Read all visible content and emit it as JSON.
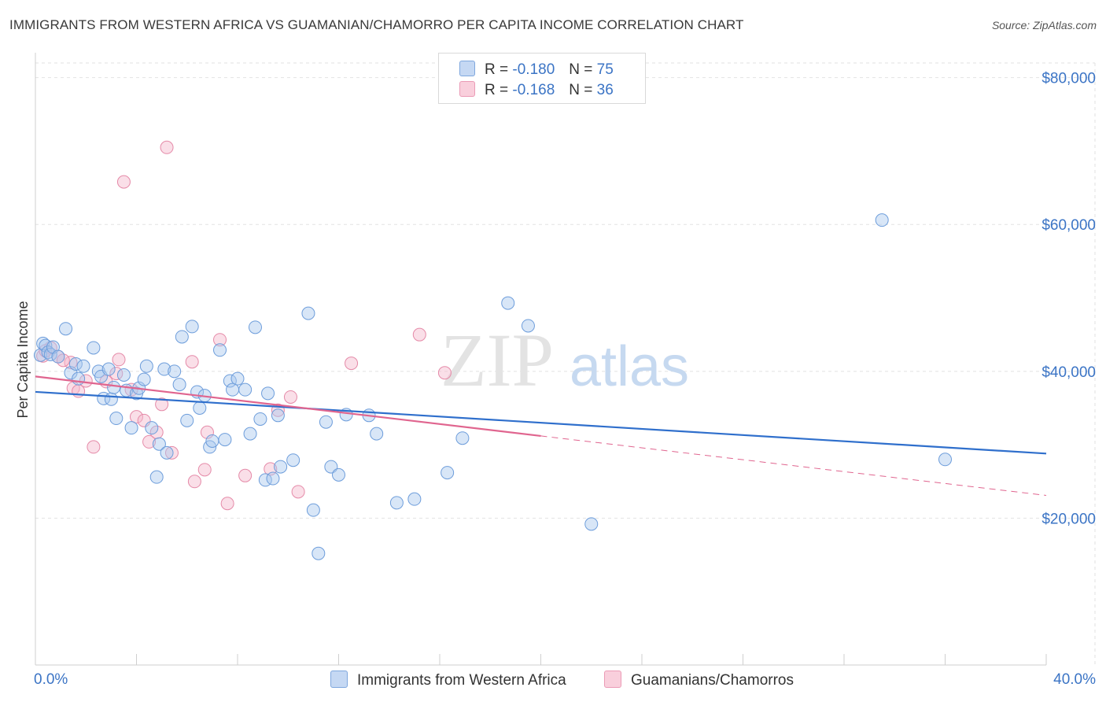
{
  "title": "IMMIGRANTS FROM WESTERN AFRICA VS GUAMANIAN/CHAMORRO PER CAPITA INCOME CORRELATION CHART",
  "source": "Source: ZipAtlas.com",
  "watermark": {
    "zip": "ZIP",
    "atlas": "atlas"
  },
  "legend": {
    "r_label": "R =",
    "n_label": "N =",
    "series1": {
      "r": "-0.180",
      "n": "75"
    },
    "series2": {
      "r": "-0.168",
      "n": "36"
    }
  },
  "colors": {
    "blue_fill": "#a9c7ee",
    "blue_stroke": "#6d9ddb",
    "blue_line": "#2f6fcc",
    "pink_fill": "#f5b9cc",
    "pink_stroke": "#e58aa8",
    "pink_line": "#e0658f",
    "axis_text": "#3b74c5"
  },
  "chart_data": {
    "type": "scatter",
    "title": "IMMIGRANTS FROM WESTERN AFRICA VS GUAMANIAN/CHAMORRO PER CAPITA INCOME CORRELATION CHART",
    "xlabel": "",
    "ylabel": "Per Capita Income",
    "xlim": [
      0,
      40
    ],
    "ylim": [
      0,
      82000
    ],
    "x_tick_labels": [
      "0.0%",
      "40.0%"
    ],
    "y_ticks": [
      20000,
      40000,
      60000,
      80000
    ],
    "y_tick_labels": [
      "$20,000",
      "$40,000",
      "$60,000",
      "$80,000"
    ],
    "grid": true,
    "legend_position": "bottom",
    "series": [
      {
        "name": "Immigrants from Western Africa",
        "color": "#6d9ddb",
        "trend": {
          "x": [
            0,
            40
          ],
          "y": [
            37200,
            28800
          ],
          "dashed_from": null
        },
        "points": [
          [
            0.2,
            42200
          ],
          [
            0.3,
            43800
          ],
          [
            0.4,
            43500
          ],
          [
            0.5,
            42600
          ],
          [
            0.6,
            42300
          ],
          [
            0.7,
            43300
          ],
          [
            0.9,
            42000
          ],
          [
            1.2,
            45800
          ],
          [
            1.4,
            39800
          ],
          [
            1.6,
            41000
          ],
          [
            1.7,
            39000
          ],
          [
            1.9,
            40700
          ],
          [
            2.3,
            43200
          ],
          [
            2.5,
            40000
          ],
          [
            2.6,
            39300
          ],
          [
            2.7,
            36300
          ],
          [
            2.9,
            40300
          ],
          [
            3.0,
            36200
          ],
          [
            3.1,
            37800
          ],
          [
            3.2,
            33600
          ],
          [
            3.5,
            39500
          ],
          [
            3.6,
            37400
          ],
          [
            3.8,
            32300
          ],
          [
            4.0,
            37000
          ],
          [
            4.1,
            37700
          ],
          [
            4.3,
            38900
          ],
          [
            4.4,
            40700
          ],
          [
            4.6,
            32300
          ],
          [
            4.8,
            25600
          ],
          [
            4.9,
            30100
          ],
          [
            5.1,
            40300
          ],
          [
            5.2,
            28900
          ],
          [
            5.5,
            40000
          ],
          [
            5.7,
            38200
          ],
          [
            5.8,
            44700
          ],
          [
            6.0,
            33300
          ],
          [
            6.2,
            46100
          ],
          [
            6.4,
            37200
          ],
          [
            6.5,
            35000
          ],
          [
            6.7,
            36700
          ],
          [
            6.9,
            29700
          ],
          [
            7.0,
            30500
          ],
          [
            7.3,
            42900
          ],
          [
            7.5,
            30700
          ],
          [
            7.7,
            38700
          ],
          [
            7.8,
            37500
          ],
          [
            8.0,
            39000
          ],
          [
            8.3,
            37500
          ],
          [
            8.5,
            31500
          ],
          [
            8.7,
            46000
          ],
          [
            8.9,
            33500
          ],
          [
            9.1,
            25200
          ],
          [
            9.2,
            37000
          ],
          [
            9.4,
            25400
          ],
          [
            9.6,
            34000
          ],
          [
            9.7,
            27000
          ],
          [
            10.2,
            27900
          ],
          [
            10.8,
            47900
          ],
          [
            11.0,
            21100
          ],
          [
            11.2,
            15200
          ],
          [
            11.5,
            33100
          ],
          [
            11.7,
            27000
          ],
          [
            12.0,
            25900
          ],
          [
            12.3,
            34100
          ],
          [
            13.2,
            34000
          ],
          [
            13.5,
            31500
          ],
          [
            14.3,
            22100
          ],
          [
            15.0,
            22600
          ],
          [
            16.3,
            26200
          ],
          [
            16.9,
            30900
          ],
          [
            18.7,
            49300
          ],
          [
            19.5,
            46200
          ],
          [
            22.0,
            19200
          ],
          [
            33.5,
            60600
          ],
          [
            36.0,
            28000
          ]
        ]
      },
      {
        "name": "Guamanians/Chamorros",
        "color": "#e58aa8",
        "trend": {
          "x": [
            0,
            40
          ],
          "y": [
            39300,
            23100
          ],
          "dashed_from": 20.0
        },
        "points": [
          [
            0.3,
            42100
          ],
          [
            0.6,
            43200
          ],
          [
            0.9,
            42000
          ],
          [
            1.4,
            41200
          ],
          [
            1.5,
            37700
          ],
          [
            1.7,
            37300
          ],
          [
            2.0,
            38700
          ],
          [
            2.3,
            29700
          ],
          [
            2.8,
            38600
          ],
          [
            3.2,
            39700
          ],
          [
            3.3,
            41600
          ],
          [
            3.5,
            65800
          ],
          [
            3.8,
            37500
          ],
          [
            4.0,
            33800
          ],
          [
            4.3,
            33300
          ],
          [
            4.5,
            30400
          ],
          [
            4.8,
            31700
          ],
          [
            5.0,
            35500
          ],
          [
            5.2,
            70500
          ],
          [
            5.4,
            28900
          ],
          [
            6.2,
            41300
          ],
          [
            6.3,
            25000
          ],
          [
            6.7,
            26600
          ],
          [
            6.8,
            31700
          ],
          [
            7.3,
            44300
          ],
          [
            7.6,
            22000
          ],
          [
            8.3,
            25800
          ],
          [
            9.3,
            26700
          ],
          [
            9.6,
            34700
          ],
          [
            10.1,
            36500
          ],
          [
            10.4,
            23600
          ],
          [
            12.5,
            41100
          ],
          [
            15.2,
            45000
          ],
          [
            16.2,
            39800
          ],
          [
            0.4,
            42800
          ],
          [
            1.1,
            41500
          ]
        ]
      }
    ]
  }
}
